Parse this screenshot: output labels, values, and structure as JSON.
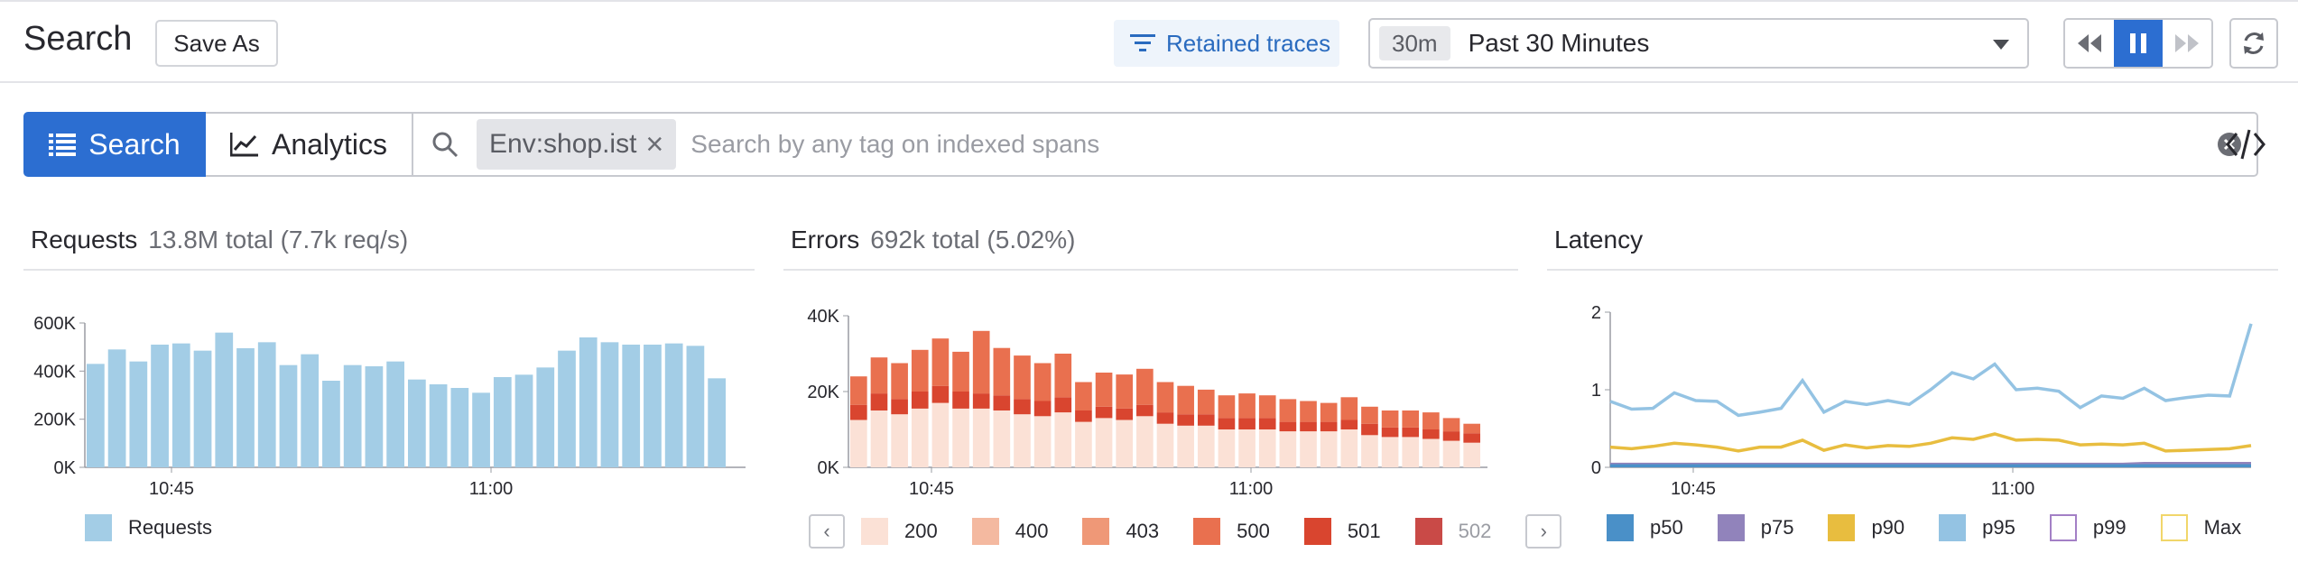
{
  "header": {
    "title": "Search",
    "save_as_label": "Save As",
    "retained_label": "Retained traces",
    "time_chip": "30m",
    "time_label": "Past 30 Minutes"
  },
  "search": {
    "search_tab_label": "Search",
    "analytics_tab_label": "Analytics",
    "tag_chip": "Env:shop.ist",
    "placeholder": "Search by any tag on indexed spans"
  },
  "colors": {
    "accent": "#2c6ed1",
    "requests_bar": "#a3cde6",
    "err_200": "#fbe1d6",
    "err_400": "#f4b9a0",
    "err_403": "#ef9877",
    "err_500": "#e9704f",
    "err_501": "#d9452f",
    "err_502": "#c94a47",
    "p50": "#4a90c8",
    "p75": "#9183bb",
    "p90": "#e8bd3f",
    "p95": "#94c3e3",
    "p99": "#a380c6",
    "max": "#f1d66a"
  },
  "panels": {
    "requests": {
      "title": "Requests",
      "subtitle": "13.8M total (7.7k req/s)",
      "legend": [
        {
          "label": "Requests",
          "color": "#a3cde6"
        }
      ]
    },
    "errors": {
      "title": "Errors",
      "subtitle": "692k total (5.02%)",
      "legend": [
        {
          "label": "200",
          "color": "#fbe1d6"
        },
        {
          "label": "400",
          "color": "#f4b9a0"
        },
        {
          "label": "403",
          "color": "#ef9877"
        },
        {
          "label": "500",
          "color": "#e9704f"
        },
        {
          "label": "501",
          "color": "#d9452f"
        },
        {
          "label": "502",
          "color": "#c94a47"
        }
      ]
    },
    "latency": {
      "title": "Latency",
      "legend": [
        {
          "label": "p50",
          "color": "#4a90c8",
          "style": "fill"
        },
        {
          "label": "p75",
          "color": "#9183bb",
          "style": "fill"
        },
        {
          "label": "p90",
          "color": "#e8bd3f",
          "style": "fill"
        },
        {
          "label": "p95",
          "color": "#94c3e3",
          "style": "fill"
        },
        {
          "label": "p99",
          "color": "#a380c6",
          "style": "outline"
        },
        {
          "label": "Max",
          "color": "#f1d66a",
          "style": "outline"
        }
      ]
    }
  },
  "chart_data": [
    {
      "type": "bar",
      "x_ticks": [
        "10:45",
        "11:00"
      ],
      "y_ticks": [
        "0K",
        "200K",
        "400K",
        "600K"
      ],
      "ylim": [
        0,
        600000
      ],
      "series": [
        {
          "name": "Requests",
          "values": [
            430000,
            490000,
            440000,
            510000,
            515000,
            485000,
            560000,
            495000,
            520000,
            425000,
            470000,
            360000,
            425000,
            420000,
            440000,
            365000,
            345000,
            330000,
            310000,
            375000,
            385000,
            415000,
            485000,
            540000,
            520000,
            510000,
            510000,
            515000,
            505000,
            370000
          ]
        }
      ]
    },
    {
      "type": "bar",
      "stacked": true,
      "x_ticks": [
        "10:45",
        "11:00"
      ],
      "y_ticks": [
        "0K",
        "20K",
        "40K"
      ],
      "ylim": [
        0,
        40000
      ],
      "categories_count": 31,
      "series": [
        {
          "name": "200",
          "values": [
            12500,
            15000,
            14000,
            15500,
            17000,
            15500,
            15500,
            15000,
            14000,
            13500,
            14500,
            12000,
            13000,
            12500,
            13500,
            11500,
            11000,
            11000,
            10000,
            10000,
            10000,
            9500,
            9500,
            9500,
            10000,
            8500,
            8000,
            8000,
            7500,
            7000,
            6500
          ]
        },
        {
          "name": "501",
          "values": [
            4000,
            4500,
            4000,
            4500,
            4500,
            4500,
            4000,
            4000,
            4000,
            4000,
            4000,
            3000,
            3000,
            3000,
            3000,
            3000,
            3000,
            3000,
            3000,
            3000,
            3000,
            2500,
            2500,
            2500,
            2500,
            3000,
            2500,
            2500,
            2500,
            2500,
            2500
          ]
        },
        {
          "name": "500",
          "values": [
            7500,
            9500,
            9500,
            11000,
            12500,
            10500,
            16500,
            12500,
            11500,
            10000,
            11500,
            7500,
            9000,
            9000,
            9500,
            8000,
            7500,
            6500,
            6000,
            6500,
            6000,
            6000,
            5500,
            5000,
            6000,
            4500,
            4500,
            4500,
            4500,
            3500,
            2500
          ]
        }
      ]
    },
    {
      "type": "line",
      "x_ticks": [
        "10:45",
        "11:00"
      ],
      "y_ticks": [
        "0",
        "1",
        "2"
      ],
      "ylim": [
        0,
        2
      ],
      "series": [
        {
          "name": "p95",
          "values": [
            0.85,
            0.75,
            0.76,
            0.96,
            0.86,
            0.85,
            0.67,
            0.71,
            0.76,
            1.12,
            0.71,
            0.85,
            0.81,
            0.86,
            0.81,
            1.0,
            1.22,
            1.14,
            1.33,
            1.0,
            1.02,
            0.98,
            0.77,
            0.92,
            0.89,
            1.02,
            0.86,
            0.9,
            0.93,
            0.92,
            1.85
          ]
        },
        {
          "name": "p90",
          "values": [
            0.26,
            0.24,
            0.27,
            0.31,
            0.29,
            0.26,
            0.21,
            0.26,
            0.26,
            0.35,
            0.22,
            0.29,
            0.25,
            0.28,
            0.27,
            0.31,
            0.38,
            0.36,
            0.43,
            0.35,
            0.36,
            0.35,
            0.29,
            0.3,
            0.29,
            0.31,
            0.21,
            0.22,
            0.23,
            0.24,
            0.28
          ]
        },
        {
          "name": "p75",
          "values": [
            0.04,
            0.04,
            0.04,
            0.04,
            0.04,
            0.04,
            0.04,
            0.04,
            0.04,
            0.04,
            0.04,
            0.04,
            0.04,
            0.04,
            0.04,
            0.04,
            0.04,
            0.04,
            0.04,
            0.04,
            0.04,
            0.04,
            0.04,
            0.04,
            0.04,
            0.05,
            0.05,
            0.05,
            0.05,
            0.05,
            0.05
          ]
        },
        {
          "name": "p50",
          "values": [
            0.02,
            0.02,
            0.02,
            0.02,
            0.02,
            0.02,
            0.02,
            0.02,
            0.02,
            0.02,
            0.02,
            0.02,
            0.02,
            0.02,
            0.02,
            0.02,
            0.02,
            0.02,
            0.02,
            0.02,
            0.02,
            0.02,
            0.02,
            0.02,
            0.02,
            0.02,
            0.02,
            0.02,
            0.02,
            0.02,
            0.02
          ]
        }
      ]
    }
  ]
}
